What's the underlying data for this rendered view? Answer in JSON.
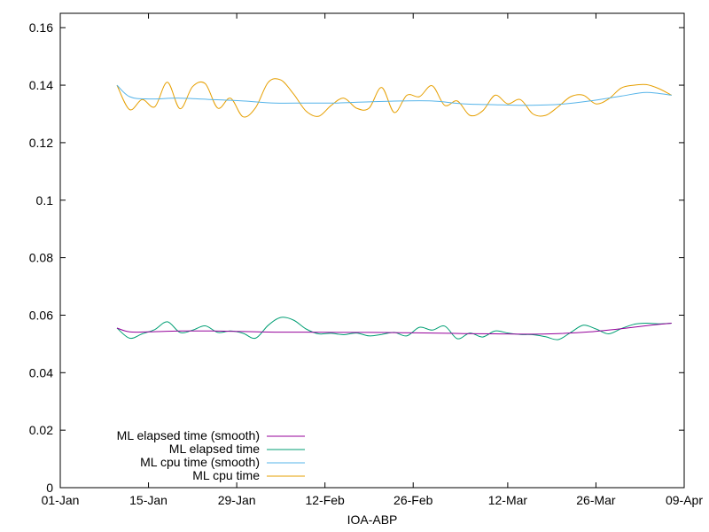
{
  "chart_data": {
    "type": "line",
    "title": "",
    "xlabel": "IOA-ABP",
    "ylabel": "",
    "xlim": [
      "2020-01-01",
      "2020-04-09"
    ],
    "ylim": [
      0,
      0.165
    ],
    "grid": false,
    "legend_position": "bottom-left",
    "x_ticks": [
      {
        "label": "01-Jan",
        "date": "2020-01-01"
      },
      {
        "label": "15-Jan",
        "date": "2020-01-15"
      },
      {
        "label": "29-Jan",
        "date": "2020-01-29"
      },
      {
        "label": "12-Feb",
        "date": "2020-02-12"
      },
      {
        "label": "26-Feb",
        "date": "2020-02-26"
      },
      {
        "label": "12-Mar",
        "date": "2020-03-12"
      },
      {
        "label": "26-Mar",
        "date": "2020-03-26"
      },
      {
        "label": "09-Apr",
        "date": "2020-04-09"
      }
    ],
    "y_ticks": [
      {
        "label": "0",
        "value": 0
      },
      {
        "label": "0.02",
        "value": 0.02
      },
      {
        "label": "0.04",
        "value": 0.04
      },
      {
        "label": "0.06",
        "value": 0.06
      },
      {
        "label": "0.08",
        "value": 0.08
      },
      {
        "label": "0.1",
        "value": 0.1
      },
      {
        "label": "0.12",
        "value": 0.12
      },
      {
        "label": "0.14",
        "value": 0.14
      },
      {
        "label": "0.16",
        "value": 0.16
      }
    ],
    "series": [
      {
        "name": "ML elapsed time (smooth)",
        "color": "#94009a",
        "points": [
          [
            "2020-01-10",
            0.0555
          ],
          [
            "2020-01-12",
            0.0542
          ],
          [
            "2020-01-15",
            0.0542
          ],
          [
            "2020-01-20",
            0.0545
          ],
          [
            "2020-01-25",
            0.0545
          ],
          [
            "2020-01-30",
            0.0543
          ],
          [
            "2020-02-04",
            0.0541
          ],
          [
            "2020-02-09",
            0.0541
          ],
          [
            "2020-02-14",
            0.054
          ],
          [
            "2020-02-19",
            0.054
          ],
          [
            "2020-02-24",
            0.0539
          ],
          [
            "2020-02-29",
            0.0538
          ],
          [
            "2020-03-05",
            0.0536
          ],
          [
            "2020-03-10",
            0.0535
          ],
          [
            "2020-03-15",
            0.0534
          ],
          [
            "2020-03-20",
            0.0536
          ],
          [
            "2020-03-25",
            0.0542
          ],
          [
            "2020-03-30",
            0.0553
          ],
          [
            "2020-04-04",
            0.0566
          ],
          [
            "2020-04-07",
            0.0572
          ]
        ]
      },
      {
        "name": "ML elapsed time",
        "color": "#009e73",
        "points": [
          [
            "2020-01-10",
            0.0555
          ],
          [
            "2020-01-12",
            0.052
          ],
          [
            "2020-01-14",
            0.0535
          ],
          [
            "2020-01-16",
            0.055
          ],
          [
            "2020-01-18",
            0.0577
          ],
          [
            "2020-01-20",
            0.054
          ],
          [
            "2020-01-22",
            0.0548
          ],
          [
            "2020-01-24",
            0.0563
          ],
          [
            "2020-01-26",
            0.054
          ],
          [
            "2020-01-28",
            0.0545
          ],
          [
            "2020-01-30",
            0.0537
          ],
          [
            "2020-02-01",
            0.052
          ],
          [
            "2020-02-03",
            0.0565
          ],
          [
            "2020-02-05",
            0.0592
          ],
          [
            "2020-02-07",
            0.0583
          ],
          [
            "2020-02-09",
            0.0552
          ],
          [
            "2020-02-11",
            0.0535
          ],
          [
            "2020-02-13",
            0.0537
          ],
          [
            "2020-02-15",
            0.0532
          ],
          [
            "2020-02-17",
            0.0538
          ],
          [
            "2020-02-19",
            0.0528
          ],
          [
            "2020-02-21",
            0.0533
          ],
          [
            "2020-02-23",
            0.054
          ],
          [
            "2020-02-25",
            0.0528
          ],
          [
            "2020-02-27",
            0.0558
          ],
          [
            "2020-02-29",
            0.0548
          ],
          [
            "2020-03-02",
            0.0562
          ],
          [
            "2020-03-04",
            0.0518
          ],
          [
            "2020-03-06",
            0.0538
          ],
          [
            "2020-03-08",
            0.0524
          ],
          [
            "2020-03-10",
            0.0545
          ],
          [
            "2020-03-12",
            0.0538
          ],
          [
            "2020-03-14",
            0.0533
          ],
          [
            "2020-03-16",
            0.0532
          ],
          [
            "2020-03-18",
            0.0525
          ],
          [
            "2020-03-20",
            0.0515
          ],
          [
            "2020-03-22",
            0.054
          ],
          [
            "2020-03-24",
            0.0565
          ],
          [
            "2020-03-26",
            0.0552
          ],
          [
            "2020-03-28",
            0.0535
          ],
          [
            "2020-03-30",
            0.0553
          ],
          [
            "2020-04-01",
            0.0568
          ],
          [
            "2020-04-03",
            0.0572
          ],
          [
            "2020-04-05",
            0.057
          ],
          [
            "2020-04-07",
            0.0572
          ]
        ]
      },
      {
        "name": "ML cpu time (smooth)",
        "color": "#56b4e9",
        "points": [
          [
            "2020-01-10",
            0.14
          ],
          [
            "2020-01-12",
            0.136
          ],
          [
            "2020-01-15",
            0.1352
          ],
          [
            "2020-01-20",
            0.1355
          ],
          [
            "2020-01-25",
            0.135
          ],
          [
            "2020-01-30",
            0.1345
          ],
          [
            "2020-02-04",
            0.1338
          ],
          [
            "2020-02-09",
            0.1338
          ],
          [
            "2020-02-14",
            0.1338
          ],
          [
            "2020-02-19",
            0.1342
          ],
          [
            "2020-02-24",
            0.1345
          ],
          [
            "2020-02-29",
            0.1345
          ],
          [
            "2020-03-05",
            0.1335
          ],
          [
            "2020-03-10",
            0.1332
          ],
          [
            "2020-03-15",
            0.133
          ],
          [
            "2020-03-20",
            0.1333
          ],
          [
            "2020-03-25",
            0.1345
          ],
          [
            "2020-03-30",
            0.1362
          ],
          [
            "2020-04-03",
            0.1375
          ],
          [
            "2020-04-07",
            0.1365
          ]
        ]
      },
      {
        "name": "ML cpu time",
        "color": "#e69f00",
        "points": [
          [
            "2020-01-10",
            0.14
          ],
          [
            "2020-01-12",
            0.1315
          ],
          [
            "2020-01-14",
            0.135
          ],
          [
            "2020-01-16",
            0.1325
          ],
          [
            "2020-01-18",
            0.141
          ],
          [
            "2020-01-20",
            0.1318
          ],
          [
            "2020-01-22",
            0.1395
          ],
          [
            "2020-01-24",
            0.1405
          ],
          [
            "2020-01-26",
            0.132
          ],
          [
            "2020-01-28",
            0.1355
          ],
          [
            "2020-01-30",
            0.129
          ],
          [
            "2020-02-01",
            0.1322
          ],
          [
            "2020-02-03",
            0.141
          ],
          [
            "2020-02-05",
            0.1418
          ],
          [
            "2020-02-07",
            0.137
          ],
          [
            "2020-02-09",
            0.131
          ],
          [
            "2020-02-11",
            0.1292
          ],
          [
            "2020-02-13",
            0.133
          ],
          [
            "2020-02-15",
            0.1355
          ],
          [
            "2020-02-17",
            0.132
          ],
          [
            "2020-02-19",
            0.132
          ],
          [
            "2020-02-21",
            0.1392
          ],
          [
            "2020-02-23",
            0.1305
          ],
          [
            "2020-02-25",
            0.1365
          ],
          [
            "2020-02-27",
            0.136
          ],
          [
            "2020-02-29",
            0.1398
          ],
          [
            "2020-03-02",
            0.133
          ],
          [
            "2020-03-04",
            0.1345
          ],
          [
            "2020-03-06",
            0.1295
          ],
          [
            "2020-03-08",
            0.131
          ],
          [
            "2020-03-10",
            0.1365
          ],
          [
            "2020-03-12",
            0.1335
          ],
          [
            "2020-03-14",
            0.135
          ],
          [
            "2020-03-16",
            0.13
          ],
          [
            "2020-03-18",
            0.1295
          ],
          [
            "2020-03-20",
            0.1325
          ],
          [
            "2020-03-22",
            0.136
          ],
          [
            "2020-03-24",
            0.1365
          ],
          [
            "2020-03-26",
            0.1335
          ],
          [
            "2020-03-28",
            0.1352
          ],
          [
            "2020-03-30",
            0.139
          ],
          [
            "2020-04-01",
            0.14
          ],
          [
            "2020-04-03",
            0.1402
          ],
          [
            "2020-04-05",
            0.1388
          ],
          [
            "2020-04-07",
            0.1365
          ]
        ]
      }
    ]
  }
}
